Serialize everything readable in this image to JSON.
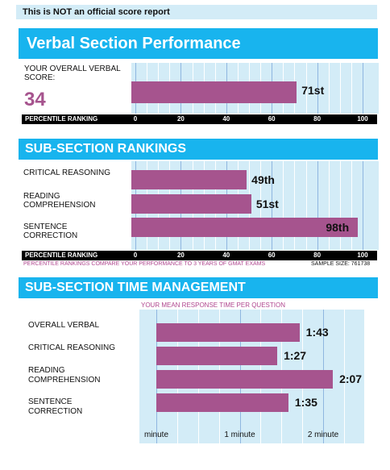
{
  "notice": "This is NOT an official score report",
  "verbal": {
    "title": "Verbal Section Performance",
    "score_label": "YOUR OVERALL VERBAL SCORE:",
    "score": "34",
    "percentile_value": 71,
    "percentile_label": "71st"
  },
  "percentile_axis": {
    "label": "PERCENTILE RANKING",
    "ticks": [
      "0",
      "20",
      "40",
      "60",
      "80",
      "100"
    ]
  },
  "subsection_rankings": {
    "title": "SUB-SECTION RANKINGS",
    "items": [
      {
        "label": "CRITICAL REASONING",
        "value": 49,
        "value_label": "49th"
      },
      {
        "label": "READING COMPREHENSION",
        "value": 51,
        "value_label": "51st"
      },
      {
        "label": "SENTENCE CORRECTION",
        "value": 98,
        "value_label": "98th"
      }
    ],
    "note": "PERCENTILE RANKINGS COMPARE YOUR PERFORMANCE TO 3 YEARS OF GMAT EXAMS",
    "sample": "SAMPLE SIZE: 761738"
  },
  "time_management": {
    "title": "SUB-SECTION TIME MANAGEMENT",
    "subtitle": "YOUR MEAN RESPONSE TIME PER QUESTION",
    "items": [
      {
        "label": "OVERALL VERBAL",
        "seconds": 103,
        "value_label": "1:43"
      },
      {
        "label": "CRITICAL REASONING",
        "seconds": 87,
        "value_label": "1:27"
      },
      {
        "label": "READING COMPREHENSION",
        "seconds": 127,
        "value_label": "2:07"
      },
      {
        "label": "SENTENCE CORRECTION",
        "seconds": 95,
        "value_label": "1:35"
      }
    ],
    "ticks": [
      "minute",
      "1 minute",
      "2 minute"
    ]
  },
  "colors": {
    "bar": "#a6548e",
    "banner": "#18b4ee",
    "plot": "#d3ecf7",
    "score": "#a6548e"
  }
}
